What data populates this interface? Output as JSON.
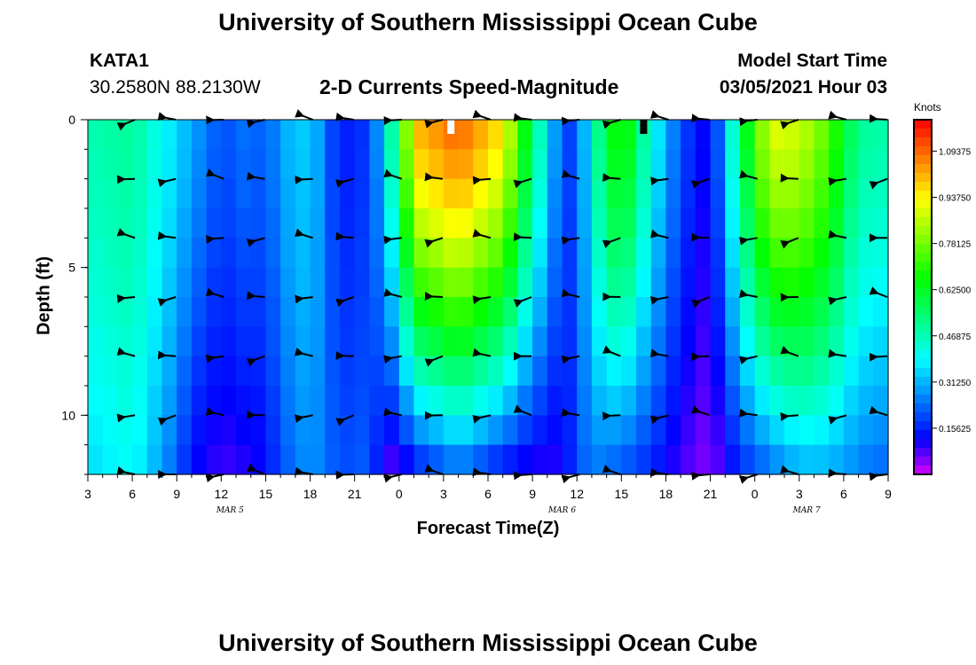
{
  "page": {
    "title_top": "University of Southern Mississippi Ocean Cube",
    "title_bottom": "University of Southern Mississippi Ocean Cube",
    "station": "KATA1",
    "coords": "30.2580N 88.2130W",
    "plot_title": "2-D Currents Speed-Magnitude",
    "model_label": "Model Start Time",
    "model_time": "03/05/2021 Hour 03"
  },
  "chart_data": {
    "type": "heatmap",
    "title": "2-D Currents Speed-Magnitude",
    "xlabel": "Forecast Time(Z)",
    "ylabel": "Depth (ft)",
    "x_ticks": [
      "3",
      "6",
      "9",
      "12",
      "15",
      "18",
      "21",
      "0",
      "3",
      "6",
      "9",
      "12",
      "15",
      "18",
      "21",
      "0",
      "3",
      "6",
      "9"
    ],
    "x_hours_range": [
      0,
      54
    ],
    "date_labels": [
      {
        "label": "MAR 5",
        "hour": 9.6
      },
      {
        "label": "MAR 6",
        "hour": 32
      },
      {
        "label": "MAR 7",
        "hour": 48.5
      }
    ],
    "y_ticks": [
      "0",
      "5",
      "10"
    ],
    "ylim": [
      0,
      12
    ],
    "colorbar": {
      "unit": "Knots",
      "ticks": [
        "1.09375",
        "0.93750",
        "0.78125",
        "0.62500",
        "0.46875",
        "0.31250",
        "0.15625"
      ],
      "range": [
        0,
        1.2
      ]
    },
    "depths_ft": [
      0,
      1,
      2,
      3,
      4,
      5,
      6,
      7,
      8,
      9,
      10,
      11,
      12
    ],
    "speed_profiles_knots": [
      {
        "hour": 0,
        "surface": 0.47,
        "bottom": 0.35
      },
      {
        "hour": 3,
        "surface": 0.5,
        "bottom": 0.4
      },
      {
        "hour": 6,
        "surface": 0.35,
        "bottom": 0.22
      },
      {
        "hour": 7,
        "surface": 0.3,
        "bottom": 0.12
      },
      {
        "hour": 9,
        "surface": 0.2,
        "bottom": 0.08
      },
      {
        "hour": 11,
        "surface": 0.25,
        "bottom": 0.1
      },
      {
        "hour": 12,
        "surface": 0.2,
        "bottom": 0.12
      },
      {
        "hour": 13,
        "surface": 0.3,
        "bottom": 0.2
      },
      {
        "hour": 15,
        "surface": 0.35,
        "bottom": 0.28
      },
      {
        "hour": 17,
        "surface": 0.14,
        "bottom": 0.2
      },
      {
        "hour": 19,
        "surface": 0.18,
        "bottom": 0.22
      },
      {
        "hour": 20,
        "surface": 0.35,
        "bottom": 0.08
      },
      {
        "hour": 21,
        "surface": 0.62,
        "bottom": 0.05
      },
      {
        "hour": 22,
        "surface": 1.0,
        "bottom": 0.12
      },
      {
        "hour": 25,
        "surface": 1.1,
        "bottom": 0.22
      },
      {
        "hour": 28,
        "surface": 0.95,
        "bottom": 0.12
      },
      {
        "hour": 30,
        "surface": 0.55,
        "bottom": 0.08
      },
      {
        "hour": 32,
        "surface": 0.2,
        "bottom": 0.1
      },
      {
        "hour": 33,
        "surface": 0.18,
        "bottom": 0.2
      },
      {
        "hour": 34,
        "surface": 0.45,
        "bottom": 0.25
      },
      {
        "hour": 36,
        "surface": 0.72,
        "bottom": 0.2
      },
      {
        "hour": 38,
        "surface": 0.42,
        "bottom": 0.15
      },
      {
        "hour": 40,
        "surface": 0.2,
        "bottom": 0.08
      },
      {
        "hour": 42,
        "surface": 0.1,
        "bottom": 0.04
      },
      {
        "hour": 44,
        "surface": 0.55,
        "bottom": 0.15
      },
      {
        "hour": 46,
        "surface": 0.9,
        "bottom": 0.22
      },
      {
        "hour": 48,
        "surface": 0.88,
        "bottom": 0.3
      },
      {
        "hour": 50,
        "surface": 0.75,
        "bottom": 0.3
      },
      {
        "hour": 52,
        "surface": 0.5,
        "bottom": 0.25
      },
      {
        "hour": 54,
        "surface": 0.48,
        "bottom": 0.22
      }
    ],
    "missing_markers": [
      {
        "hour": 24.5,
        "color": "#ffffff"
      },
      {
        "hour": 37.5,
        "color": "#000000"
      }
    ],
    "arrow_hours": [
      3,
      6,
      9,
      12,
      15,
      18,
      21,
      24,
      27,
      30,
      33,
      36,
      39,
      42,
      45,
      48,
      51,
      54
    ],
    "arrow_depths_ft": [
      0,
      2,
      4,
      6,
      8,
      10,
      12
    ]
  }
}
